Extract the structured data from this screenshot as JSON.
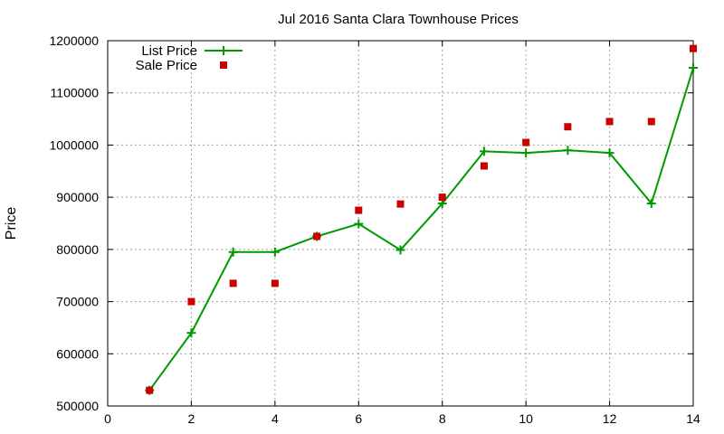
{
  "chart_data": {
    "type": "line",
    "title": "Jul 2016 Santa Clara Townhouse Prices",
    "xlabel": "",
    "ylabel": "Price",
    "xlim": [
      0,
      14
    ],
    "ylim": [
      500000,
      1200000
    ],
    "xticks": [
      0,
      2,
      4,
      6,
      8,
      10,
      12,
      14
    ],
    "yticks": [
      500000,
      600000,
      700000,
      800000,
      900000,
      1000000,
      1100000,
      1200000
    ],
    "grid": true,
    "legend_position": "top-left",
    "series": [
      {
        "name": "List Price",
        "style": "line-with-plus-markers",
        "color": "#009900",
        "x": [
          1,
          2,
          3,
          4,
          5,
          6,
          7,
          8,
          9,
          10,
          11,
          12,
          13,
          14
        ],
        "y": [
          530000,
          640000,
          795000,
          795000,
          825000,
          849000,
          799000,
          888000,
          988000,
          985000,
          990000,
          985000,
          888000,
          1148000
        ]
      },
      {
        "name": "Sale Price",
        "style": "square-markers",
        "color": "#cc0000",
        "x": [
          1,
          2,
          3,
          4,
          5,
          6,
          7,
          8,
          9,
          10,
          11,
          12,
          13,
          14
        ],
        "y": [
          530000,
          700000,
          735000,
          735000,
          825000,
          875000,
          887000,
          900000,
          960000,
          1005000,
          1035000,
          1045000,
          1045000,
          1185000
        ]
      }
    ]
  }
}
